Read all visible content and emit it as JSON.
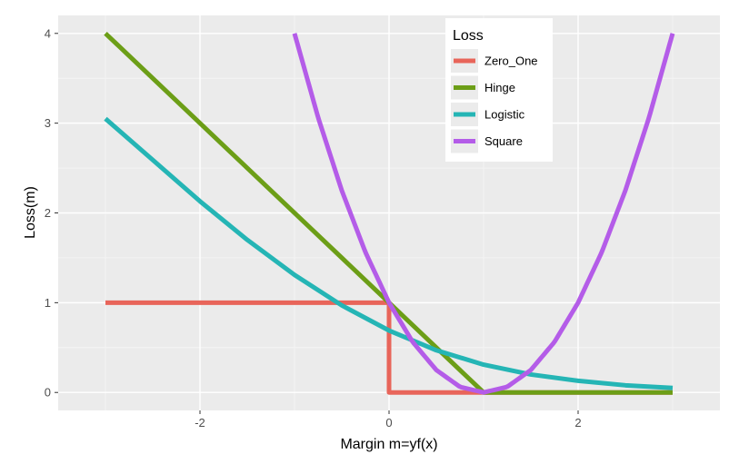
{
  "chart_data": {
    "type": "line",
    "xlabel": "Margin m=yf(x)",
    "ylabel": "Loss(m)",
    "xlim": [
      -3.5,
      3.5
    ],
    "ylim": [
      -0.2,
      4.2
    ],
    "x_ticks": [
      -2,
      0,
      2
    ],
    "x_tick_labels": [
      "-2",
      "0",
      "2"
    ],
    "y_ticks": [
      0,
      1,
      2,
      3,
      4
    ],
    "y_tick_labels": [
      "0",
      "1",
      "2",
      "3",
      "4"
    ],
    "grid": true,
    "legend": {
      "title": "Loss",
      "placement": "top-right",
      "labels": [
        "Zero_One",
        "Hinge",
        "Logistic",
        "Square"
      ]
    },
    "series": [
      {
        "name": "Zero_One",
        "color": "#E8655A",
        "x": [
          -3,
          0,
          0,
          3
        ],
        "y": [
          1,
          1,
          0,
          0
        ]
      },
      {
        "name": "Hinge",
        "color": "#6C9E17",
        "x": [
          -3,
          1,
          3
        ],
        "y": [
          4,
          0,
          0
        ]
      },
      {
        "name": "Logistic",
        "color": "#25B5B5",
        "x": [
          -3,
          -2.5,
          -2,
          -1.5,
          -1,
          -0.5,
          0,
          0.5,
          1,
          1.5,
          2,
          2.5,
          3
        ],
        "y": [
          3.05,
          2.59,
          2.13,
          1.7,
          1.31,
          0.97,
          0.69,
          0.47,
          0.31,
          0.2,
          0.13,
          0.08,
          0.05
        ]
      },
      {
        "name": "Square",
        "color": "#B45CE8",
        "x": [
          -1,
          -0.75,
          -0.5,
          -0.25,
          0,
          0.25,
          0.5,
          0.75,
          1,
          1.25,
          1.5,
          1.75,
          2,
          2.25,
          2.5,
          2.75,
          3
        ],
        "y": [
          4,
          3.0625,
          2.25,
          1.5625,
          1,
          0.5625,
          0.25,
          0.0625,
          0,
          0.0625,
          0.25,
          0.5625,
          1,
          1.5625,
          2.25,
          3.0625,
          4
        ]
      }
    ]
  }
}
